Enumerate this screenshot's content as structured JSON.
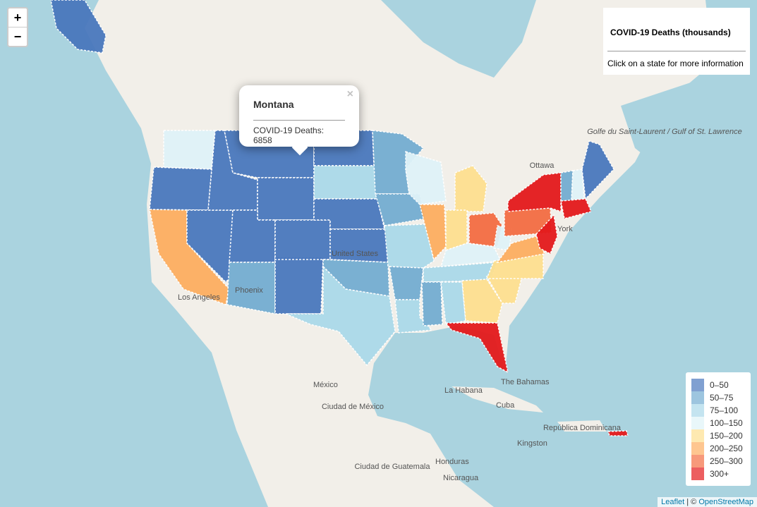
{
  "zoom": {
    "in": "+",
    "out": "−"
  },
  "info": {
    "title": "COVID-19 Deaths (thousands)",
    "hint": "Click on a state for more information"
  },
  "popup": {
    "title": "Montana",
    "label": "COVID-19 Deaths:",
    "value": 6858,
    "close": "×"
  },
  "legend": {
    "items": [
      {
        "label": "0–50",
        "color": "#4a78bd"
      },
      {
        "label": "50–75",
        "color": "#74add1"
      },
      {
        "label": "75–100",
        "color": "#abd9e9"
      },
      {
        "label": "100–150",
        "color": "#e0f3f8"
      },
      {
        "label": "150–200",
        "color": "#fee090"
      },
      {
        "label": "200–250",
        "color": "#fdae61"
      },
      {
        "label": "250–300",
        "color": "#f46d43"
      },
      {
        "label": "300+",
        "color": "#e41a1c"
      }
    ]
  },
  "attribution": {
    "leaflet": "Leaflet",
    "separator": "| ©",
    "osm": "OpenStreetMap"
  },
  "map_labels": [
    "Ottawa",
    "Golfe du Saint-Laurent / Gulf of St. Lawrence",
    "Los Angeles",
    "Phoenix",
    "United States",
    "York",
    "México",
    "Ciudad de México",
    "La Habana",
    "The Bahamas",
    "Cuba",
    "República Dominicana",
    "Kingston",
    "Ciudad de Guatemala",
    "Honduras",
    "Nicaragua"
  ]
}
